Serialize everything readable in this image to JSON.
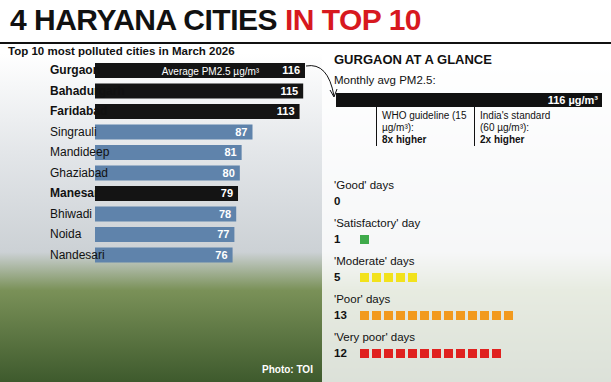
{
  "title": {
    "text": "4 HARYANA CITIES",
    "highlight": "IN TOP 10"
  },
  "chart_data": {
    "type": "bar",
    "orientation": "horizontal",
    "title": "Top 10 most polluted cities in March 2026",
    "annotation": "Average PM2.5 µg/m³",
    "categories": [
      "Gurgaon",
      "Bahadurgarh",
      "Faridabad",
      "Singrauli",
      "Mandideep",
      "Ghaziabad",
      "Manesar",
      "Bhiwadi",
      "Noida",
      "Nandesari"
    ],
    "values": [
      116,
      115,
      113,
      87,
      81,
      80,
      79,
      78,
      77,
      76
    ],
    "colors": [
      "#141414",
      "#141414",
      "#141414",
      "#5f83ab",
      "#5f83ab",
      "#5f83ab",
      "#141414",
      "#5f83ab",
      "#5f83ab",
      "#5f83ab"
    ],
    "xlim": [
      0,
      116
    ],
    "data_labels": true,
    "tick_labels": "y"
  },
  "panel": {
    "title": "GURGAON AT A GLANCE",
    "subtitle": "Monthly avg PM2.5:",
    "value_label": "116 µg/m³",
    "comparisons": [
      {
        "label": "WHO guideline (15 µg/m³):",
        "note": "8x higher"
      },
      {
        "label": "India's standard (60 µg/m³):",
        "note": "2x higher"
      }
    ],
    "days": [
      {
        "label": "'Good' days",
        "count": 0
      },
      {
        "label": "'Satisfactory' day",
        "count": 1,
        "color": "#3faa4a"
      },
      {
        "label": "'Moderate' days",
        "count": 5,
        "color": "#f2e21c"
      },
      {
        "label": "'Poor' days",
        "count": 13,
        "color": "#f29a1e"
      },
      {
        "label": "'Very poor' days",
        "count": 12,
        "color": "#e0211f"
      }
    ]
  },
  "credit": "Photo: TOI"
}
